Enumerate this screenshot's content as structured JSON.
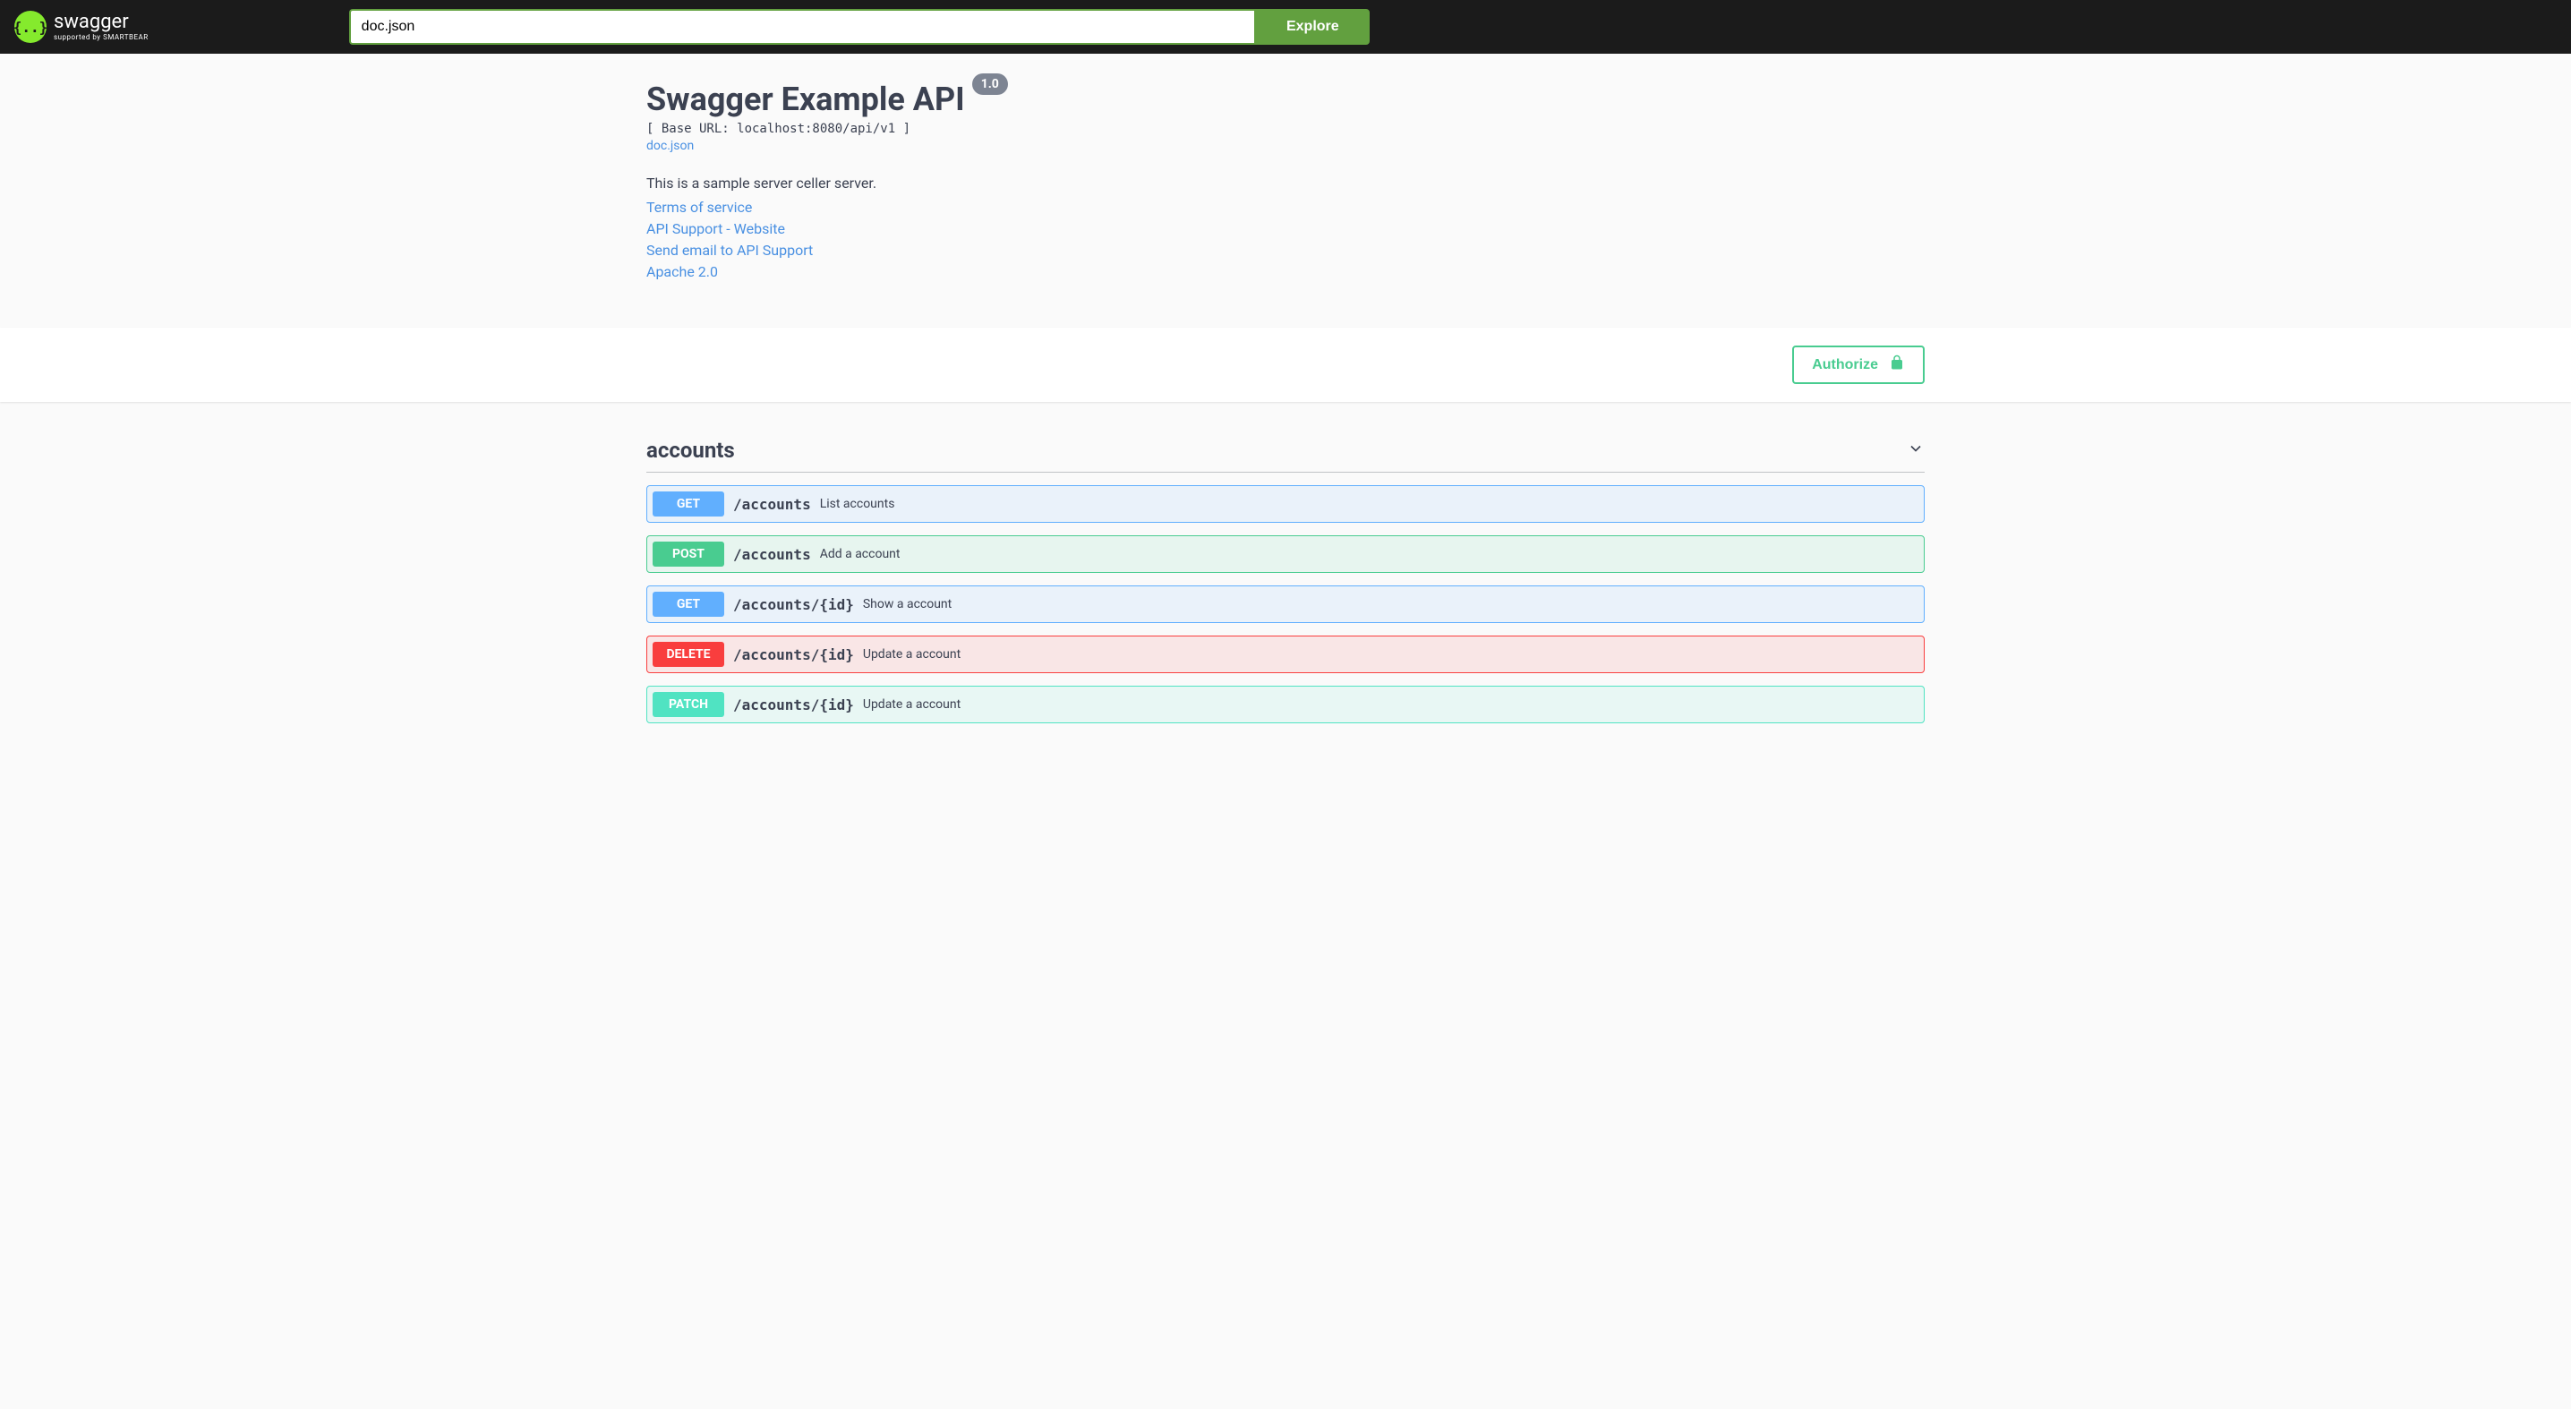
{
  "topbar": {
    "logo_text": "swagger",
    "logo_subtext": "supported by SMARTBEAR",
    "url_value": "doc.json",
    "explore_label": "Explore"
  },
  "info": {
    "title": "Swagger Example API",
    "version": "1.0",
    "base_url_line": "[ Base URL: localhost:8080/api/v1 ]",
    "doc_link": "doc.json",
    "description": "This is a sample server celler server.",
    "terms_link": "Terms of service",
    "support_website": "API Support - Website",
    "support_email": "Send email to API Support",
    "license": "Apache 2.0"
  },
  "auth": {
    "authorize_label": "Authorize"
  },
  "tag": {
    "name": "accounts"
  },
  "ops": [
    {
      "method": "GET",
      "class": "get",
      "path": "/accounts",
      "summary": "List accounts"
    },
    {
      "method": "POST",
      "class": "post",
      "path": "/accounts",
      "summary": "Add a account"
    },
    {
      "method": "GET",
      "class": "get",
      "path": "/accounts/{id}",
      "summary": "Show a account"
    },
    {
      "method": "DELETE",
      "class": "delete",
      "path": "/accounts/{id}",
      "summary": "Update a account"
    },
    {
      "method": "PATCH",
      "class": "patch",
      "path": "/accounts/{id}",
      "summary": "Update a account"
    }
  ]
}
